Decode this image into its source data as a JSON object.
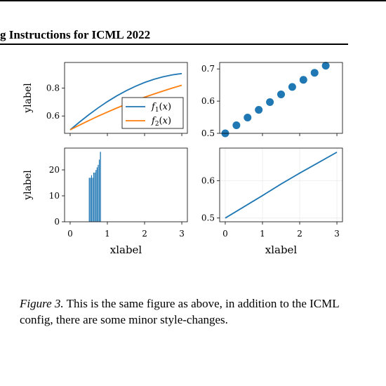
{
  "header": {
    "title": "g Instructions for ICML 2022"
  },
  "caption": {
    "label": "Figure 3.",
    "text": " This is the same figure as above, in addition to the ICML config, there are some minor style-changes."
  },
  "colors": {
    "blue": "#1f77b4",
    "orange": "#ff7f0e"
  },
  "chart_data": [
    {
      "id": "top-left",
      "type": "line",
      "xlim": [
        -0.15,
        3.15
      ],
      "ylim": [
        0.475,
        0.985
      ],
      "yticks": [
        0.6,
        0.8
      ],
      "ytick_labels": [
        "0.6",
        "0.8"
      ],
      "xticks": [
        0,
        1,
        2,
        3
      ],
      "ylabel": "ylabel",
      "xlabel": "",
      "legend": {
        "placement": "lower-right",
        "entries": [
          "f1(x)",
          "f2(x)"
        ]
      },
      "series": [
        {
          "name": "f1(x)",
          "color": "blue",
          "x": [
            0,
            0.25,
            0.5,
            0.75,
            1,
            1.25,
            1.5,
            1.75,
            2,
            2.25,
            2.5,
            2.75,
            3
          ],
          "y": [
            0.5,
            0.556,
            0.609,
            0.658,
            0.703,
            0.744,
            0.781,
            0.813,
            0.841,
            0.864,
            0.882,
            0.896,
            0.905
          ]
        },
        {
          "name": "f2(x)",
          "color": "orange",
          "x": [
            0,
            0.25,
            0.5,
            0.75,
            1,
            1.25,
            1.5,
            1.75,
            2,
            2.25,
            2.5,
            2.75,
            3
          ],
          "y": [
            0.5,
            0.534,
            0.567,
            0.598,
            0.628,
            0.657,
            0.684,
            0.71,
            0.735,
            0.758,
            0.78,
            0.801,
            0.821
          ]
        }
      ]
    },
    {
      "id": "top-right",
      "type": "scatter",
      "xlim": [
        -0.15,
        3.15
      ],
      "ylim": [
        0.5,
        0.72
      ],
      "yticks": [
        0.5,
        0.6,
        0.7
      ],
      "ytick_labels": [
        "0.5",
        "0.6",
        "0.7"
      ],
      "xticks": [
        0,
        1,
        2,
        3
      ],
      "series": [
        {
          "color": "blue",
          "x": [
            0,
            0.3,
            0.6,
            0.9,
            1.2,
            1.5,
            1.8,
            2.1,
            2.4,
            2.7
          ],
          "y": [
            0.5,
            0.525,
            0.549,
            0.573,
            0.597,
            0.621,
            0.644,
            0.666,
            0.688,
            0.71
          ]
        }
      ]
    },
    {
      "id": "bottom-left",
      "type": "bar",
      "xlim": [
        -0.15,
        3.15
      ],
      "ylim": [
        0,
        28.4
      ],
      "yticks": [
        0,
        10,
        20
      ],
      "ytick_labels": [
        "0",
        "10",
        "20"
      ],
      "xticks": [
        0,
        1,
        2,
        3
      ],
      "xtick_labels": [
        "0",
        "1",
        "2",
        "3"
      ],
      "xlabel": "xlabel",
      "ylabel": "ylabel",
      "bin_width": 0.03,
      "bins": [
        0.5,
        0.53,
        0.56,
        0.59,
        0.62,
        0.65,
        0.68,
        0.71,
        0.74,
        0.77,
        0.8
      ],
      "values": [
        17,
        17,
        18,
        17,
        19,
        19,
        20,
        21,
        22,
        24,
        27
      ],
      "series": [
        {
          "color": "blue"
        }
      ]
    },
    {
      "id": "bottom-right",
      "type": "line",
      "xlim": [
        -0.15,
        3.15
      ],
      "ylim": [
        0.49,
        0.687
      ],
      "yticks": [
        0.5,
        0.6
      ],
      "ytick_labels": [
        "0.5",
        "0.6"
      ],
      "xticks": [
        0,
        1,
        2,
        3
      ],
      "xtick_labels": [
        "0",
        "1",
        "2",
        "3"
      ],
      "xlabel": "xlabel",
      "grid": true,
      "series": [
        {
          "color": "blue",
          "x": [
            0,
            0.5,
            1,
            1.5,
            2,
            2.5,
            3
          ],
          "y": [
            0.5,
            0.53,
            0.56,
            0.591,
            0.62,
            0.648,
            0.676
          ]
        }
      ]
    }
  ]
}
